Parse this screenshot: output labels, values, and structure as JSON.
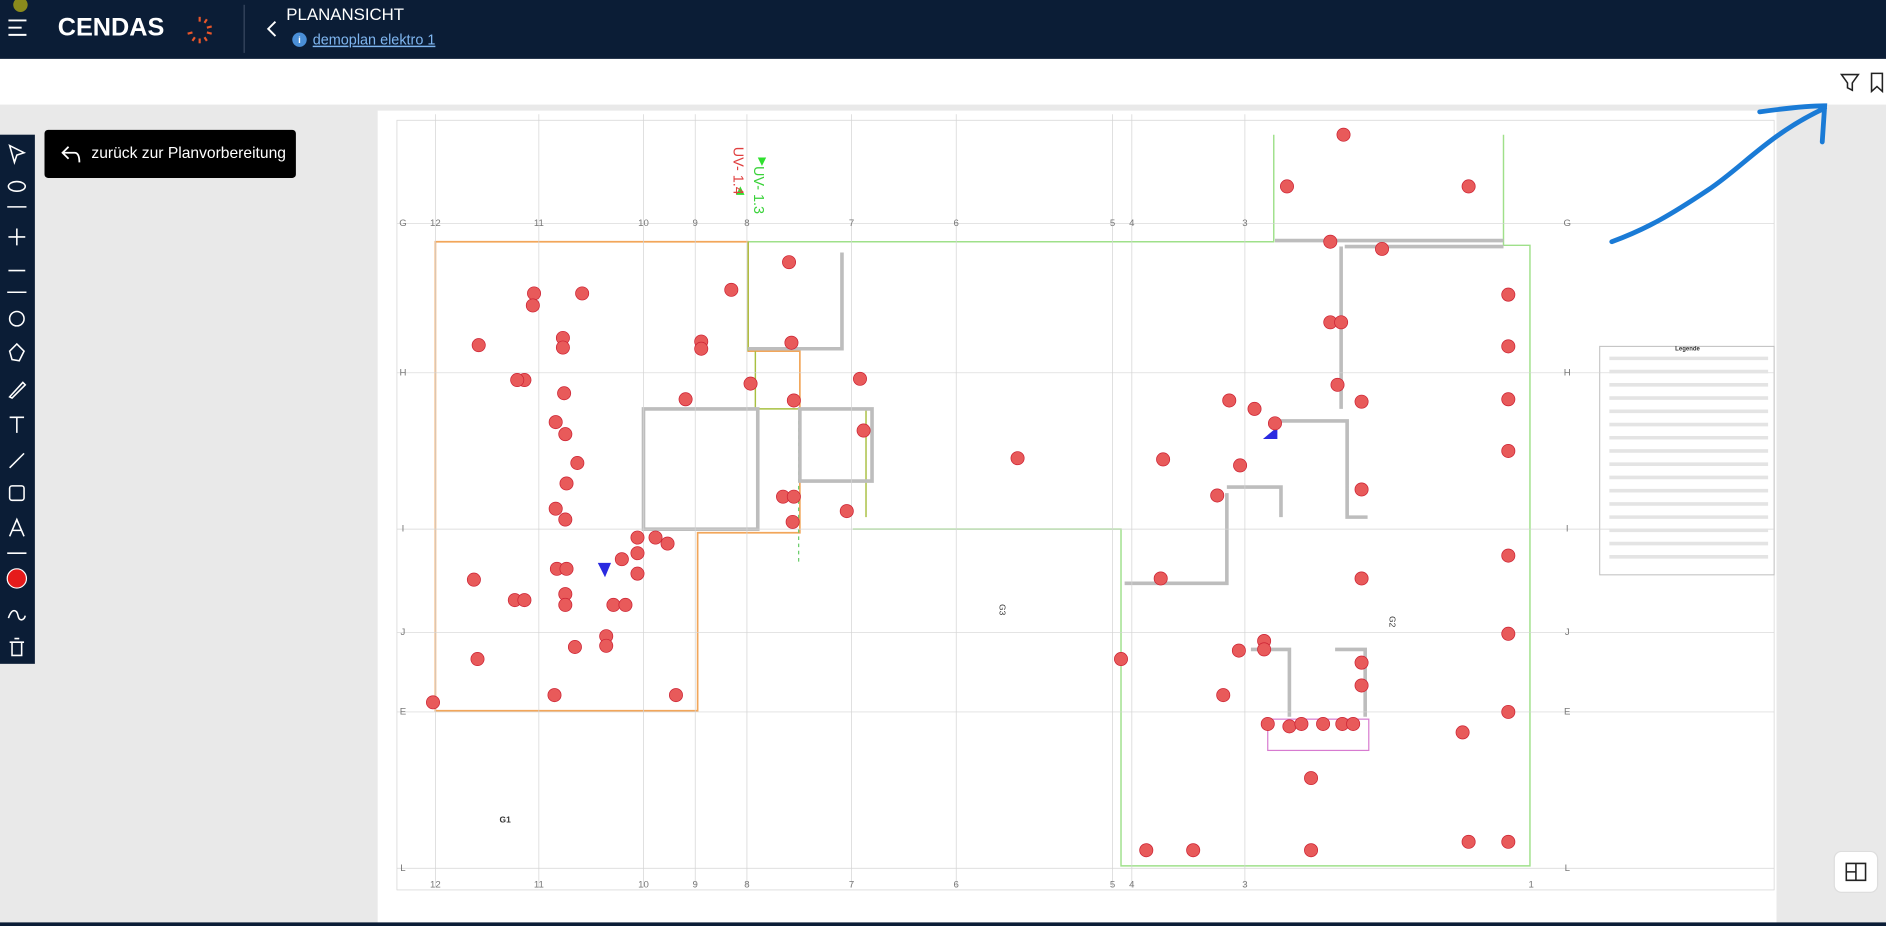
{
  "header": {
    "logo": "CENDAS",
    "title": "PLANANSICHT",
    "plan_link": "demoplan elektro 1"
  },
  "tooltip": "zurück zur Planvorbereitung",
  "plan": {
    "annotations": [
      "UV- 1.4",
      "UV- 1.3"
    ],
    "legend_title": "Legende",
    "grid_top": [
      "12",
      "11",
      "10",
      "9",
      "8",
      "7",
      "6",
      "5",
      "4",
      "3"
    ],
    "grid_bottom": [
      "12",
      "11",
      "10",
      "9",
      "8",
      "7",
      "6",
      "5",
      "4",
      "3",
      "1"
    ],
    "grid_side": [
      "G",
      "H",
      "I",
      "J",
      "E",
      "L"
    ],
    "areas": [
      "G1",
      "G3",
      "G2"
    ]
  }
}
